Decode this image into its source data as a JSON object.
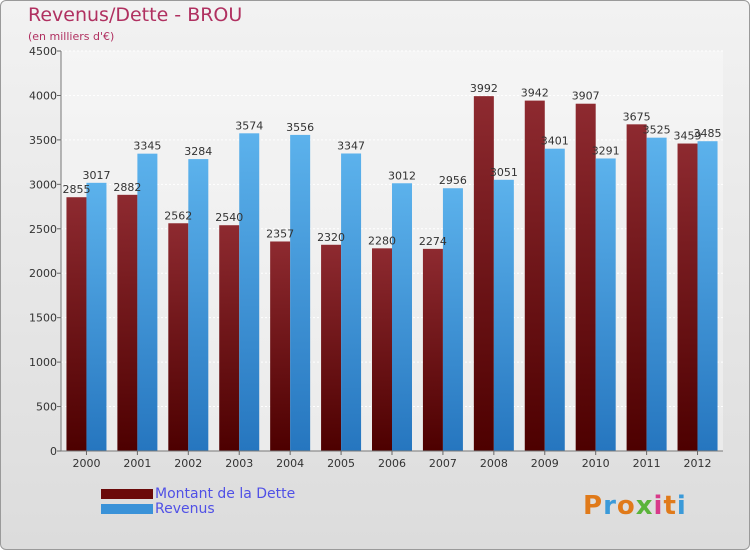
{
  "chart_data": {
    "type": "bar",
    "title": "Revenus/Dette - BROU",
    "subtitle": "(en milliers d'€)",
    "categories": [
      "2000",
      "2001",
      "2002",
      "2003",
      "2004",
      "2005",
      "2006",
      "2007",
      "2008",
      "2009",
      "2010",
      "2011",
      "2012"
    ],
    "series": [
      {
        "name": "Montant de la Dette",
        "color": "#8b1a1a",
        "values": [
          2855,
          2882,
          2562,
          2540,
          2357,
          2320,
          2280,
          2274,
          3992,
          3942,
          3907,
          3675,
          3459
        ],
        "labels": [
          "2855",
          "2882",
          "2562",
          "2540",
          "2357",
          "2320",
          "2280",
          "2274",
          "3992",
          "3942",
          "3907",
          "3675",
          "3459"
        ]
      },
      {
        "name": "Revenus",
        "color": "#4aa0e0",
        "values": [
          3017,
          3345,
          3284,
          3574,
          3556,
          3347,
          3012,
          2956,
          3051,
          3401,
          3291,
          3525,
          3485
        ],
        "labels": [
          "3017",
          "3345",
          "3284",
          "3574",
          "3556",
          "3347",
          "3012",
          "2956",
          "3051",
          "3401",
          "3291",
          "3525",
          "3485"
        ]
      }
    ],
    "ylim": [
      0,
      4500
    ],
    "yticks": [
      "0",
      "500",
      "1000",
      "1500",
      "2000",
      "2500",
      "3000",
      "3500",
      "4000",
      "4500"
    ],
    "grid": true,
    "legend_position": "bottom-left"
  },
  "logo": {
    "letters": [
      "P",
      "r",
      "o",
      "x",
      "i",
      "t",
      "i"
    ],
    "colors": [
      "#e07a1a",
      "#3a9ad9",
      "#e07a1a",
      "#5ab43a",
      "#d83a8a",
      "#e07a1a",
      "#3a9ad9"
    ]
  }
}
